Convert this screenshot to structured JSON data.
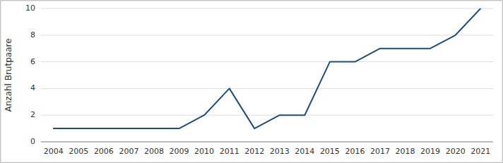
{
  "chart_data": {
    "type": "line",
    "x": [
      2004,
      2005,
      2006,
      2007,
      2008,
      2009,
      2010,
      2011,
      2012,
      2013,
      2014,
      2015,
      2016,
      2017,
      2018,
      2019,
      2020,
      2021
    ],
    "values": [
      1,
      1,
      1,
      1,
      1,
      1,
      2,
      4,
      1,
      2,
      2,
      6,
      6,
      7,
      7,
      7,
      8,
      10
    ],
    "color": "#1f4e79",
    "y_label": "Anzahl Brutpaare",
    "xlim": [
      2003.5,
      2021.5
    ],
    "xticks": [
      2004,
      2005,
      2006,
      2007,
      2008,
      2009,
      2010,
      2011,
      2012,
      2013,
      2014,
      2015,
      2016,
      2017,
      2018,
      2019,
      2020,
      2021
    ],
    "ylim": [
      0,
      10
    ],
    "yticks": [
      0,
      2,
      4,
      6,
      8,
      10
    ],
    "grid": true
  }
}
